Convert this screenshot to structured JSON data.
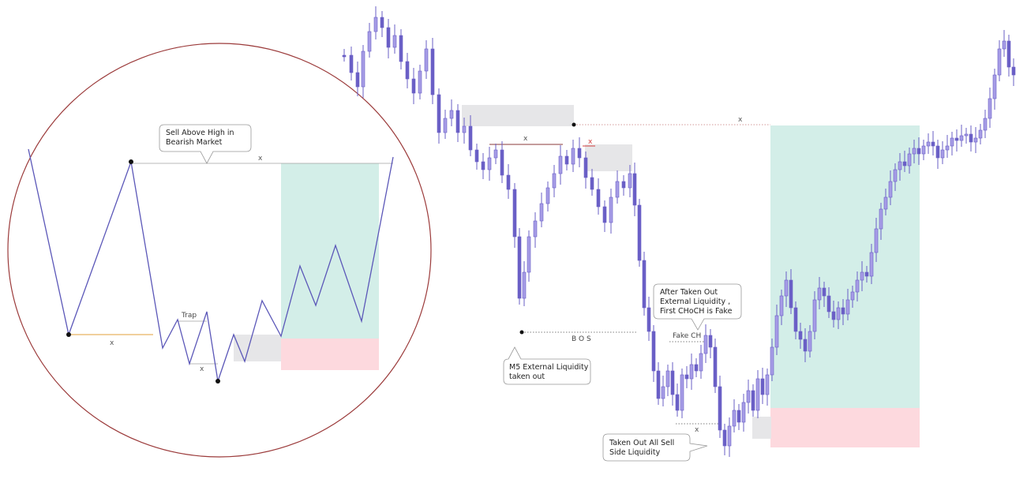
{
  "colors": {
    "candle": "#6a5fc6",
    "candle_fill": "#a69ce6",
    "circle": "#9b3a3a",
    "tp_zone": "#d3eee8",
    "sl_zone": "#fdd9de",
    "fvg_grey": "#e6e6e8",
    "level_line": "#9a9a9a",
    "liquidity_orange": "#e1a23a",
    "red_level": "#d14040"
  },
  "left_panel": {
    "callout_high": "Sell Above High in\nBearish Market",
    "x_top": "x",
    "x_bottom": "x",
    "trap": "Trap",
    "x_trap": "x"
  },
  "right_panel": {
    "callout_m5": "M5 External Liquidity\ntaken out",
    "bos": "B O S",
    "callout_fake": "After Taken Out\nExternal Liquidity ,\nFirst CHoCH is Fake",
    "fake_ch": "Fake CH",
    "x_fake": "x",
    "callout_sell_side": "Taken Out All Sell\nSide Liquidity",
    "x_top_long": "x",
    "x_mid": "x",
    "x_red": "x"
  },
  "chart_data": [
    {
      "type": "line",
      "series": [
        {
          "values": [
            1.0,
            0.16,
            0.93,
            0.08,
            0.14,
            0.04,
            0.0,
            0.29,
            0.15,
            0.27,
            0.12,
            0.39,
            0.35,
            0.65,
            0.5,
            0.68,
            0.49,
            1.0
          ]
        }
      ]
    },
    {
      "type": "candlestick",
      "series": [
        {
          "values": []
        }
      ]
    }
  ]
}
